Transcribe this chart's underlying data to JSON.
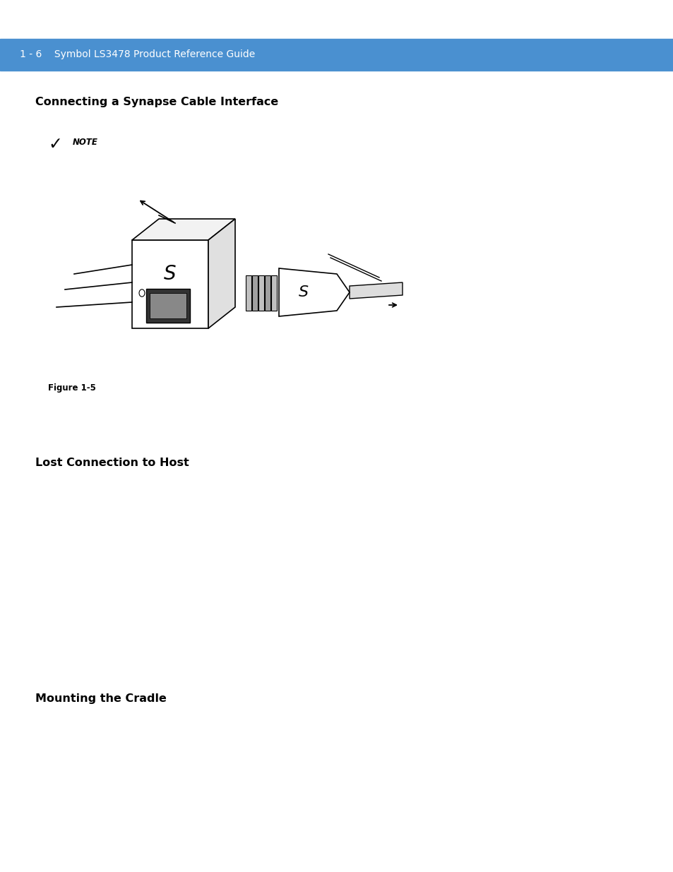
{
  "page_bg": "#ffffff",
  "header_bg": "#4a90d0",
  "header_text": "1 - 6    Symbol LS3478 Product Reference Guide",
  "header_text_color": "#ffffff",
  "section1_title": "Connecting a Synapse Cable Interface",
  "section2_title": "Lost Connection to Host",
  "section3_title": "Mounting the Cradle",
  "note_label": "NOTE",
  "figure_label": "Figure 1-5",
  "title_fontsize": 11.5,
  "header_fontsize": 10,
  "note_fontsize": 8.5,
  "figure_fontsize": 8.5
}
